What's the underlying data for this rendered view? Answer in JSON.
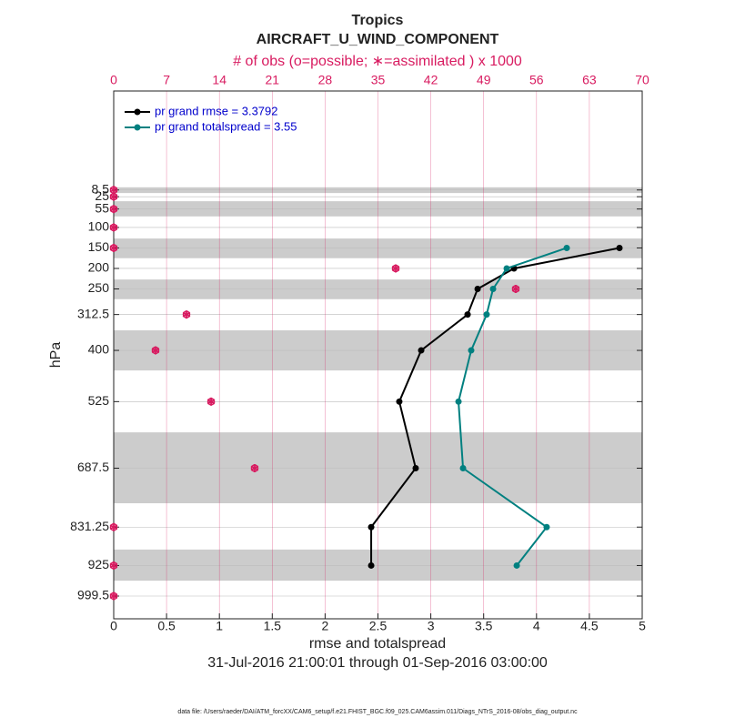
{
  "chart_data": {
    "type": "profile",
    "title": "Tropics",
    "subtitle": "AIRCRAFT_U_WIND_COMPONENT",
    "x2_label": "# of obs (o=possible; ∗=assimilated ) x 1000",
    "x_label": "rmse and totalspread",
    "date_range": "31-Jul-2016 21:00:01 through 01-Sep-2016 03:00:00",
    "footer": "data file: /Users/raeder/DAI/ATM_forcXX/CAM6_setup/f.e21.FHIST_BGC.f09_025.CAM6assim.011/Diags_NTrS_2016-08/obs_diag_output.nc",
    "y_label": "hPa",
    "y": [
      8.5,
      25,
      55,
      100,
      150,
      200,
      250,
      312.5,
      400,
      525,
      687.5,
      831.25,
      925,
      999.5
    ],
    "y_reversed": true,
    "ylim": [
      -233,
      1055
    ],
    "yticks": [
      8.5,
      25,
      55,
      100,
      150,
      200,
      250,
      312.5,
      400,
      525,
      687.5,
      831.25,
      925,
      999.5
    ],
    "xlim": [
      0,
      5
    ],
    "xticks": [
      0,
      0.5,
      1,
      1.5,
      2,
      2.5,
      3,
      3.5,
      4,
      4.5,
      5
    ],
    "x2lim": [
      0,
      70
    ],
    "x2ticks": [
      0,
      7,
      14,
      21,
      28,
      35,
      42,
      49,
      56,
      63,
      70
    ],
    "layer_bands": [
      [
        2,
        16
      ],
      [
        36,
        73
      ],
      [
        127,
        175
      ],
      [
        227,
        275
      ],
      [
        351,
        449
      ],
      [
        600,
        773
      ],
      [
        886,
        962
      ]
    ],
    "legend": "northwest",
    "series": [
      {
        "name": "pr grand rmse = 3.3792",
        "color": "#000000",
        "values": [
          null,
          null,
          null,
          null,
          4.785,
          3.787,
          3.443,
          3.348,
          2.909,
          2.702,
          2.857,
          2.436,
          2.436,
          null
        ]
      },
      {
        "name": "pr grand totalspread = 3.55",
        "color": "#008080",
        "values": [
          null,
          null,
          null,
          null,
          4.286,
          3.718,
          3.589,
          3.528,
          3.382,
          3.262,
          3.305,
          4.096,
          3.813,
          null
        ]
      }
    ],
    "obs": {
      "color": "#d81b60",
      "possible": [
        0,
        0,
        0,
        0,
        0,
        37.35,
        53.25,
        9.64,
        5.54,
        12.9,
        18.67,
        0,
        0,
        0
      ],
      "assimilated": [
        0,
        0,
        0,
        0,
        0,
        37.35,
        53.25,
        9.64,
        5.54,
        12.9,
        18.67,
        0,
        0,
        0
      ]
    }
  }
}
